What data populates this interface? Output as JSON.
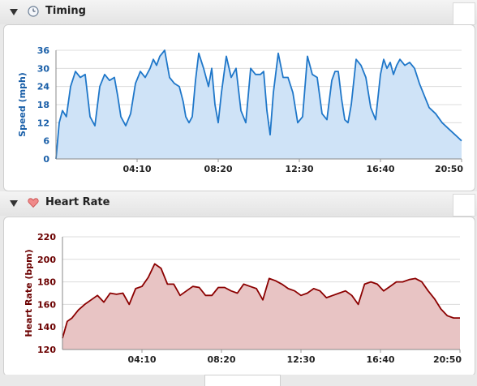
{
  "sections": {
    "timing": {
      "title": "Timing",
      "icon": "clock-icon"
    },
    "heart": {
      "title": "Heart Rate",
      "icon": "heart-icon"
    }
  },
  "colors": {
    "speed_line": "#1f77c9",
    "speed_fill": "#cfe3f7",
    "speed_axis_text": "#1a5fa8",
    "hr_line": "#8b0000",
    "hr_fill": "#e8c4c4",
    "hr_axis_text": "#6b0000"
  },
  "chart_data": [
    {
      "type": "area",
      "ylabel": "Speed (mph)",
      "yticks": [
        "0",
        "6",
        "12",
        "18",
        "24",
        "30",
        "36"
      ],
      "xticks": [
        "04:10",
        "08:20",
        "12:30",
        "16:40",
        "20:50"
      ],
      "ylim": [
        0,
        36
      ],
      "xlim": [
        0,
        1250
      ],
      "grid": true,
      "series": [
        {
          "x": [
            0,
            10,
            20,
            32,
            45,
            60,
            75,
            90,
            105,
            120,
            135,
            150,
            165,
            180,
            190,
            200,
            215,
            230,
            245,
            260,
            275,
            290,
            300,
            310,
            320,
            335,
            350,
            365,
            380,
            392,
            400,
            410,
            420,
            430,
            440,
            455,
            470,
            480,
            490,
            500,
            510,
            525,
            540,
            555,
            570,
            585,
            600,
            615,
            630,
            640,
            650,
            660,
            670,
            685,
            700,
            715,
            730,
            745,
            760,
            775,
            790,
            805,
            820,
            835,
            850,
            860,
            870,
            880,
            890,
            900,
            910,
            925,
            940,
            955,
            970,
            985,
            1000,
            1010,
            1020,
            1030,
            1040,
            1050,
            1060,
            1075,
            1090,
            1105,
            1120,
            1135,
            1150,
            1170,
            1190,
            1210,
            1230,
            1240,
            1250
          ],
          "y": [
            0,
            12,
            16,
            14,
            24,
            29,
            27,
            28,
            14,
            11,
            24,
            28,
            26,
            27,
            21,
            14,
            11,
            15,
            25,
            29,
            27,
            30,
            33,
            31,
            34,
            36,
            27,
            25,
            24,
            19,
            14,
            12,
            14,
            26,
            35,
            30,
            24,
            30,
            18,
            12,
            22,
            34,
            27,
            30,
            16,
            12,
            30,
            28,
            28,
            29,
            16,
            8,
            22,
            35,
            27,
            27,
            22,
            12,
            14,
            34,
            28,
            27,
            15,
            13,
            26,
            29,
            29,
            20,
            13,
            12,
            18,
            33,
            31,
            27,
            17,
            13,
            28,
            33,
            30,
            32,
            28,
            31,
            33,
            31,
            32,
            30,
            25,
            21,
            17,
            15,
            12,
            10,
            8,
            7,
            6
          ]
        }
      ]
    },
    {
      "type": "area",
      "ylabel": "Heart Rate (bpm)",
      "yticks": [
        "120",
        "140",
        "160",
        "180",
        "200",
        "220"
      ],
      "xticks": [
        "04:10",
        "08:20",
        "12:30",
        "16:40",
        "20:50"
      ],
      "ylim": [
        120,
        220
      ],
      "xlim": [
        0,
        1250
      ],
      "grid": true,
      "series": [
        {
          "x": [
            0,
            15,
            30,
            50,
            70,
            90,
            110,
            130,
            150,
            170,
            190,
            210,
            230,
            250,
            270,
            290,
            310,
            330,
            350,
            370,
            390,
            410,
            430,
            450,
            470,
            490,
            510,
            530,
            550,
            570,
            590,
            610,
            630,
            650,
            670,
            690,
            710,
            730,
            750,
            770,
            790,
            810,
            830,
            850,
            870,
            890,
            910,
            930,
            950,
            970,
            990,
            1010,
            1030,
            1050,
            1070,
            1090,
            1110,
            1130,
            1150,
            1170,
            1190,
            1210,
            1230,
            1250
          ],
          "y": [
            130,
            145,
            148,
            155,
            160,
            164,
            168,
            162,
            170,
            169,
            170,
            160,
            174,
            176,
            184,
            196,
            192,
            178,
            178,
            168,
            172,
            176,
            175,
            168,
            168,
            175,
            175,
            172,
            170,
            178,
            176,
            174,
            164,
            183,
            181,
            178,
            174,
            172,
            168,
            170,
            174,
            172,
            166,
            168,
            170,
            172,
            168,
            160,
            178,
            180,
            178,
            172,
            176,
            180,
            180,
            182,
            183,
            180,
            172,
            165,
            156,
            150,
            148,
            148
          ]
        }
      ]
    }
  ]
}
